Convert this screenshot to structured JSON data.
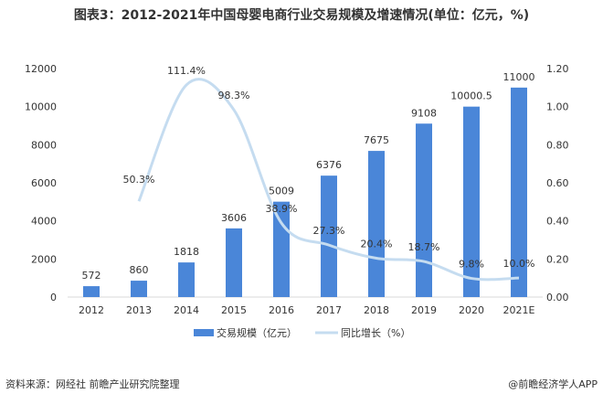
{
  "chart_data": {
    "type": "bar",
    "title": "图表3：2012-2021年中国母婴电商行业交易规模及增速情况(单位：亿元，%)",
    "categories": [
      "2012",
      "2013",
      "2014",
      "2015",
      "2016",
      "2017",
      "2018",
      "2019",
      "2020",
      "2021E"
    ],
    "series": [
      {
        "name": "交易规模（亿元）",
        "type": "bar",
        "axis": "left",
        "color": "#4a86d8",
        "values": [
          572,
          860,
          1818,
          3606,
          5009,
          6376,
          7675,
          9108,
          10000.5,
          11000
        ],
        "labels": [
          "572",
          "860",
          "1818",
          "3606",
          "5009",
          "6376",
          "7675",
          "9108",
          "10000.5",
          "11000"
        ]
      },
      {
        "name": "同比增长（%）",
        "type": "line",
        "axis": "right",
        "smooth": true,
        "color": "#c5dcf0",
        "values": [
          null,
          0.503,
          1.114,
          0.983,
          0.389,
          0.273,
          0.204,
          0.187,
          0.098,
          0.1
        ],
        "labels": [
          "",
          "50.3%",
          "111.4%",
          "98.3%",
          "38.9%",
          "27.3%",
          "20.4%",
          "18.7%",
          "9.8%",
          "10.0%"
        ]
      }
    ],
    "ylim_left": [
      0,
      12000
    ],
    "yticks_left": [
      "0",
      "2000",
      "4000",
      "6000",
      "8000",
      "10000",
      "12000"
    ],
    "ylim_right": [
      0,
      1.2
    ],
    "yticks_right": [
      "0.00",
      "0.20",
      "0.40",
      "0.60",
      "0.80",
      "1.00",
      "1.20"
    ],
    "grid": false,
    "legend": "bottom"
  },
  "footer": {
    "source": "资料来源：网经社 前瞻产业研究院整理",
    "brand": "@前瞻经济学人APP"
  }
}
